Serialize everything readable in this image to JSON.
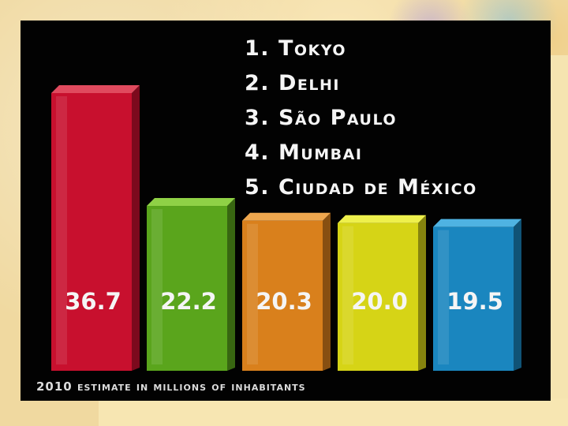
{
  "chart_data": {
    "type": "bar",
    "title": "",
    "categories": [
      "1. Tokyo",
      "2. Delhi",
      "3. São Paulo",
      "4. Mumbai",
      "5. Ciudad de México"
    ],
    "values": [
      36.7,
      22.2,
      20.3,
      20.0,
      19.5
    ],
    "value_labels": [
      "36.7",
      "22.2",
      "20.3",
      "20.0",
      "19.5"
    ],
    "bar_colors": [
      "#c8102e",
      "#5aa51c",
      "#d9801c",
      "#d6d416",
      "#1a86bf"
    ],
    "bar_top_colors": [
      "#e04a5e",
      "#8fd146",
      "#efa74e",
      "#eef04c",
      "#4fb3e2"
    ],
    "xlabel": "",
    "ylabel": "",
    "ylim": [
      0,
      36.7
    ],
    "grid": false,
    "legend_position": "top-right",
    "footnote": "2010 estimate in millions of inhabitants"
  },
  "colors": {
    "panel_background": "#020202",
    "label_text": "#f5f5f5",
    "slide_background": "#f0d9a0"
  }
}
